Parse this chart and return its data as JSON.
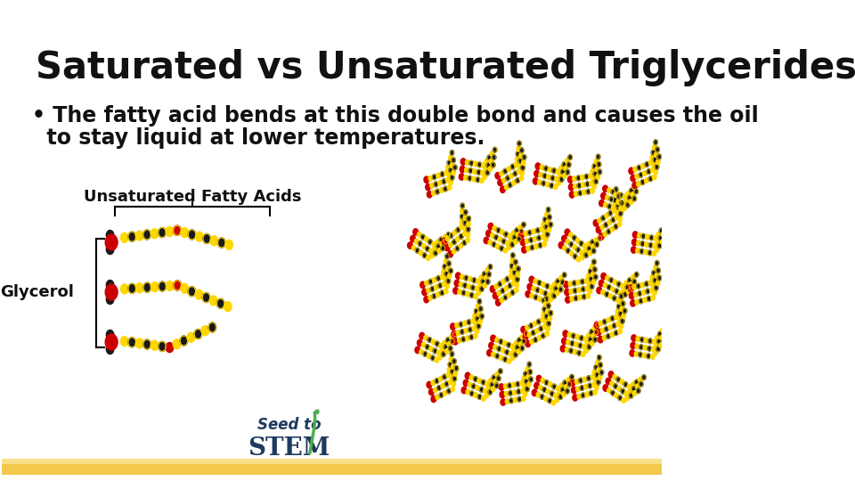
{
  "title": "Saturated vs Unsaturated Triglycerides",
  "bullet_line1": "• The fatty acid bends at this double bond and causes the oil",
  "bullet_line2": "  to stay liquid at lower temperatures.",
  "label_unsaturated": "Unsaturated Fatty Acids",
  "label_glycerol": "Glycerol",
  "bg_color": "#ffffff",
  "title_fontsize": 30,
  "bullet_fontsize": 17,
  "label_fontsize": 13,
  "bottom_bar1_color": "#F2C94C",
  "bottom_bar2_color": "#F8E08A",
  "yellow": "#FFD700",
  "black": "#1a1a1a",
  "red": "#CC0000"
}
